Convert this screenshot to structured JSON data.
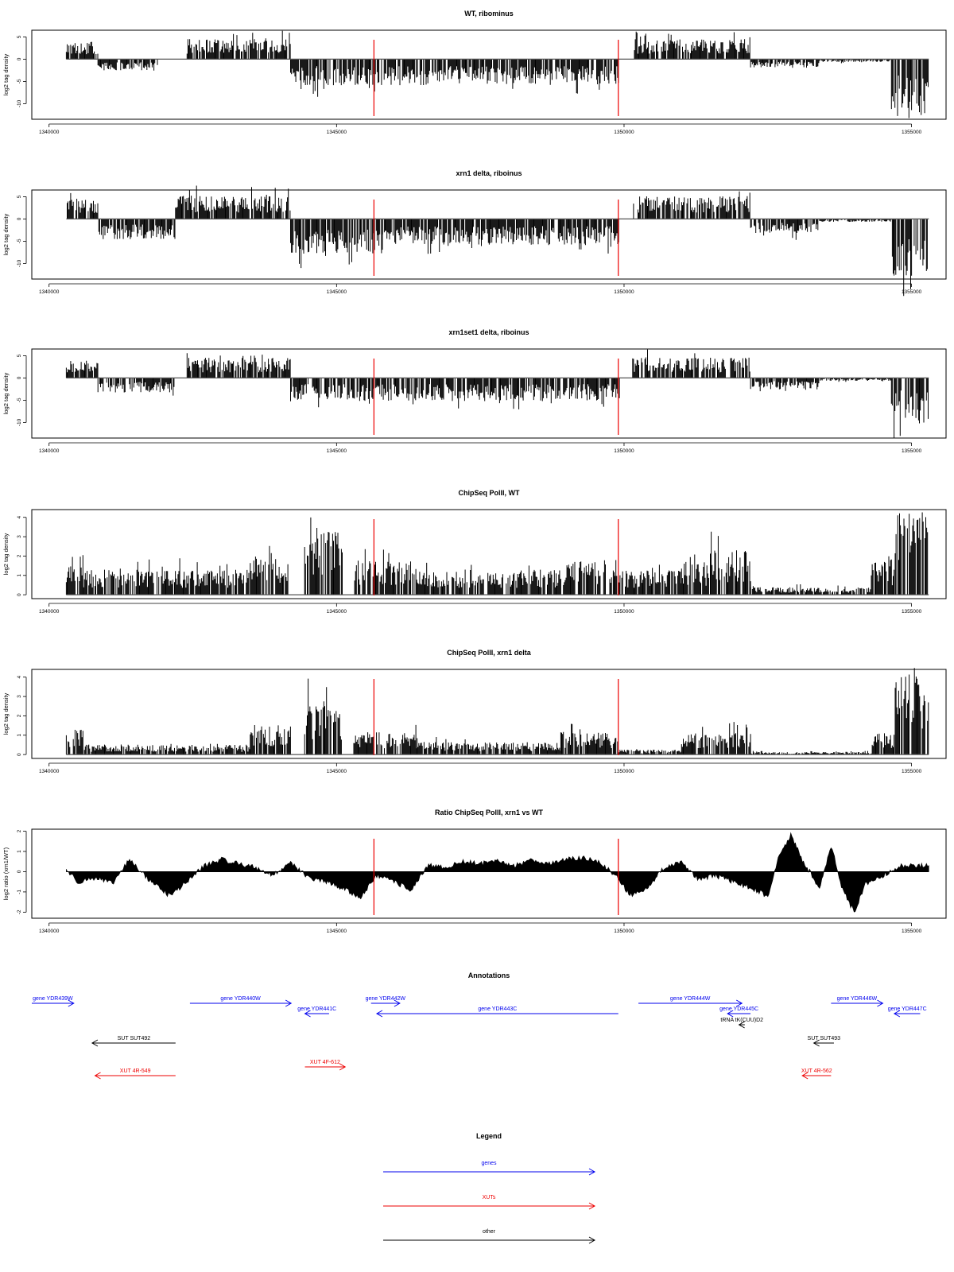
{
  "colors": {
    "signal": "#000000",
    "marker": "#ee0000",
    "genes": "#0000ee",
    "xuts": "#ee0000",
    "other": "#000000",
    "axis": "#000000",
    "zero_line": "#555555"
  },
  "chart_data": [
    {
      "type": "bar",
      "title": "WT, ribominus",
      "ylabel": "log2 tag density",
      "xlim": [
        1339700,
        1355600
      ],
      "ylim": [
        -13.5,
        6.5
      ],
      "x_ticks": [
        1340000,
        1345000,
        1350000,
        1355000
      ],
      "y_ticks": [
        5,
        0,
        -5,
        -10
      ],
      "markers_x": [
        1345650,
        1349900
      ],
      "segments": [
        {
          "x": [
            1340300,
            1340850
          ],
          "y": 3
        },
        {
          "x": [
            1340850,
            1341900
          ],
          "y": -2
        },
        {
          "x": [
            1342400,
            1344200
          ],
          "y": 3.5
        },
        {
          "x": [
            1344200,
            1349920
          ],
          "y": -4.5
        },
        {
          "x": [
            1350150,
            1352200
          ],
          "y": 3.5
        },
        {
          "x": [
            1352200,
            1353400
          ],
          "y": -1.5
        },
        {
          "x": [
            1353400,
            1354650
          ],
          "y": -0.5
        },
        {
          "x": [
            1354650,
            1355300
          ],
          "y": -10
        }
      ]
    },
    {
      "type": "bar",
      "title": "xrn1 delta, riboinus",
      "ylabel": "log2 tag density",
      "xlim": [
        1339700,
        1355600
      ],
      "ylim": [
        -13.5,
        6.5
      ],
      "x_ticks": [
        1340000,
        1345000,
        1350000,
        1355000
      ],
      "y_ticks": [
        5,
        0,
        -5,
        -10
      ],
      "markers_x": [
        1345650,
        1349900
      ],
      "segments": [
        {
          "x": [
            1340300,
            1340850
          ],
          "y": 3.5
        },
        {
          "x": [
            1340850,
            1342200
          ],
          "y": -3.5
        },
        {
          "x": [
            1342200,
            1344200
          ],
          "y": 4
        },
        {
          "x": [
            1344200,
            1345800
          ],
          "y": -6
        },
        {
          "x": [
            1345800,
            1349920
          ],
          "y": -4.5
        },
        {
          "x": [
            1350150,
            1352200
          ],
          "y": 4
        },
        {
          "x": [
            1352200,
            1353400
          ],
          "y": -2.5
        },
        {
          "x": [
            1353400,
            1354650
          ],
          "y": -0.5
        },
        {
          "x": [
            1354650,
            1355300
          ],
          "y": -10
        }
      ]
    },
    {
      "type": "bar",
      "title": "xrn1set1 delta, riboinus",
      "ylabel": "log2 tag density",
      "xlim": [
        1339700,
        1355600
      ],
      "ylim": [
        -13.5,
        6.5
      ],
      "x_ticks": [
        1340000,
        1345000,
        1350000,
        1355000
      ],
      "y_ticks": [
        5,
        0,
        -5,
        -10
      ],
      "markers_x": [
        1345650,
        1349900
      ],
      "segments": [
        {
          "x": [
            1340300,
            1340850
          ],
          "y": 3
        },
        {
          "x": [
            1340850,
            1342200
          ],
          "y": -2.5
        },
        {
          "x": [
            1342400,
            1344200
          ],
          "y": 3.5
        },
        {
          "x": [
            1344200,
            1349920
          ],
          "y": -4
        },
        {
          "x": [
            1350150,
            1352200
          ],
          "y": 3.5
        },
        {
          "x": [
            1352200,
            1353400
          ],
          "y": -2
        },
        {
          "x": [
            1353400,
            1354650
          ],
          "y": -0.5
        },
        {
          "x": [
            1354650,
            1355300
          ],
          "y": -8
        }
      ]
    },
    {
      "type": "bar",
      "title": "ChipSeq PolII, WT",
      "ylabel": "log2 tag density",
      "xlim": [
        1339700,
        1355600
      ],
      "ylim": [
        -0.2,
        4.4
      ],
      "x_ticks": [
        1340000,
        1345000,
        1350000,
        1355000
      ],
      "y_ticks": [
        4,
        3,
        2,
        1,
        0
      ],
      "markers_x": [
        1345650,
        1349900
      ],
      "segments": [
        {
          "x": [
            1340300,
            1340600
          ],
          "y": 1.6
        },
        {
          "x": [
            1340600,
            1343500
          ],
          "y": 1
        },
        {
          "x": [
            1343500,
            1344200
          ],
          "y": 1.6
        },
        {
          "x": [
            1344400,
            1345100
          ],
          "y": 2.8
        },
        {
          "x": [
            1345300,
            1346400
          ],
          "y": 1.4
        },
        {
          "x": [
            1346400,
            1348900
          ],
          "y": 1
        },
        {
          "x": [
            1348900,
            1349900
          ],
          "y": 1.4
        },
        {
          "x": [
            1349900,
            1351000
          ],
          "y": 1
        },
        {
          "x": [
            1351000,
            1351500
          ],
          "y": 1.3
        },
        {
          "x": [
            1351500,
            1352200
          ],
          "y": 1.8
        },
        {
          "x": [
            1352200,
            1354300
          ],
          "y": 0.3
        },
        {
          "x": [
            1354300,
            1354700
          ],
          "y": 1.4
        },
        {
          "x": [
            1354700,
            1355300
          ],
          "y": 3.4
        }
      ]
    },
    {
      "type": "bar",
      "title": "ChipSeq PolII, xrn1 delta",
      "ylabel": "log2 tag density",
      "xlim": [
        1339700,
        1355600
      ],
      "ylim": [
        -0.2,
        4.4
      ],
      "x_ticks": [
        1340000,
        1345000,
        1350000,
        1355000
      ],
      "y_ticks": [
        4,
        3,
        2,
        1,
        0
      ],
      "markers_x": [
        1345650,
        1349900
      ],
      "segments": [
        {
          "x": [
            1340300,
            1340600
          ],
          "y": 1
        },
        {
          "x": [
            1340600,
            1343500
          ],
          "y": 0.4
        },
        {
          "x": [
            1343500,
            1344200
          ],
          "y": 1.2
        },
        {
          "x": [
            1344400,
            1345100
          ],
          "y": 2.2
        },
        {
          "x": [
            1345300,
            1346400
          ],
          "y": 0.9
        },
        {
          "x": [
            1346400,
            1348900
          ],
          "y": 0.5
        },
        {
          "x": [
            1348900,
            1349900
          ],
          "y": 0.9
        },
        {
          "x": [
            1349900,
            1351000
          ],
          "y": 0.2
        },
        {
          "x": [
            1351000,
            1351500
          ],
          "y": 0.9
        },
        {
          "x": [
            1351500,
            1352200
          ],
          "y": 0.9
        },
        {
          "x": [
            1352200,
            1354300
          ],
          "y": 0.1
        },
        {
          "x": [
            1354300,
            1354700
          ],
          "y": 0.9
        },
        {
          "x": [
            1354700,
            1355300
          ],
          "y": 3.5
        }
      ]
    },
    {
      "type": "area",
      "title": "Ratio ChipSeq PolII, xrn1 vs WT",
      "ylabel": "log2 ratio (xrn1/WT)",
      "xlim": [
        1339700,
        1355600
      ],
      "ylim": [
        -2.3,
        2.1
      ],
      "x_ticks": [
        1340000,
        1345000,
        1350000,
        1355000
      ],
      "y_ticks": [
        2,
        1,
        0,
        -1,
        -2
      ],
      "markers_x": [
        1345650,
        1349900
      ],
      "points": [
        [
          1340300,
          0.1
        ],
        [
          1340500,
          -0.5
        ],
        [
          1340800,
          -0.3
        ],
        [
          1341100,
          -0.6
        ],
        [
          1341400,
          0.6
        ],
        [
          1341700,
          -0.3
        ],
        [
          1342100,
          -1.2
        ],
        [
          1342400,
          -0.5
        ],
        [
          1342700,
          0.3
        ],
        [
          1343000,
          0.6
        ],
        [
          1343300,
          0.4
        ],
        [
          1343600,
          0.2
        ],
        [
          1343900,
          -0.2
        ],
        [
          1344200,
          0.5
        ],
        [
          1344500,
          -0.3
        ],
        [
          1344800,
          -0.5
        ],
        [
          1345100,
          -0.8
        ],
        [
          1345400,
          -1.3
        ],
        [
          1345700,
          -0.2
        ],
        [
          1346000,
          -0.5
        ],
        [
          1346300,
          -0.9
        ],
        [
          1346600,
          0.3
        ],
        [
          1346900,
          0.2
        ],
        [
          1347200,
          0.5
        ],
        [
          1347500,
          0.4
        ],
        [
          1347800,
          0.5
        ],
        [
          1348100,
          0.3
        ],
        [
          1348400,
          0.6
        ],
        [
          1348700,
          0.4
        ],
        [
          1349000,
          0.6
        ],
        [
          1349300,
          0.7
        ],
        [
          1349600,
          0.4
        ],
        [
          1349900,
          -0.3
        ],
        [
          1350100,
          -1.2
        ],
        [
          1350400,
          -0.8
        ],
        [
          1350700,
          0.2
        ],
        [
          1351000,
          0.5
        ],
        [
          1351300,
          -0.4
        ],
        [
          1351600,
          -0.2
        ],
        [
          1351900,
          -0.5
        ],
        [
          1352200,
          -0.8
        ],
        [
          1352500,
          -1.2
        ],
        [
          1352700,
          0.8
        ],
        [
          1352900,
          1.8
        ],
        [
          1353100,
          0.6
        ],
        [
          1353400,
          -0.8
        ],
        [
          1353600,
          1.3
        ],
        [
          1353800,
          -0.9
        ],
        [
          1354000,
          -2.0
        ],
        [
          1354200,
          -0.6
        ],
        [
          1354500,
          -0.2
        ],
        [
          1354800,
          0.3
        ],
        [
          1355300,
          0.3
        ]
      ]
    }
  ],
  "annotations": {
    "title": "Annotations",
    "xlim": [
      1339700,
      1355600
    ],
    "features": [
      {
        "label": "gene YDR439W",
        "kind": "genes",
        "start": 1339700,
        "end": 1340430,
        "strand": "+",
        "row": 0
      },
      {
        "label": "gene YDR440W",
        "kind": "genes",
        "start": 1342450,
        "end": 1344210,
        "strand": "+",
        "row": 0
      },
      {
        "label": "gene YDR441C",
        "kind": "genes",
        "start": 1344450,
        "end": 1344870,
        "strand": "-",
        "row": 1
      },
      {
        "label": "gene YDR442W",
        "kind": "genes",
        "start": 1345600,
        "end": 1346100,
        "strand": "+",
        "row": 0
      },
      {
        "label": "gene YDR443C",
        "kind": "genes",
        "start": 1345700,
        "end": 1349900,
        "strand": "-",
        "row": 1
      },
      {
        "label": "gene YDR444W",
        "kind": "genes",
        "start": 1350250,
        "end": 1352050,
        "strand": "+",
        "row": 0
      },
      {
        "label": "gene YDR445C",
        "kind": "genes",
        "start": 1351800,
        "end": 1352200,
        "strand": "-",
        "row": 1
      },
      {
        "label": "gene YDR446W",
        "kind": "genes",
        "start": 1353600,
        "end": 1354500,
        "strand": "+",
        "row": 0
      },
      {
        "label": "gene YDR447C",
        "kind": "genes",
        "start": 1354700,
        "end": 1355150,
        "strand": "-",
        "row": 1
      },
      {
        "label": "tRNA tK(CUU)D2",
        "kind": "other",
        "start": 1352000,
        "end": 1352100,
        "strand": "-",
        "row": 2
      },
      {
        "label": "SUT SUT492",
        "kind": "other",
        "start": 1340750,
        "end": 1342200,
        "strand": "-",
        "row": 3
      },
      {
        "label": "SUT SUT493",
        "kind": "other",
        "start": 1353300,
        "end": 1353650,
        "strand": "-",
        "row": 3
      },
      {
        "label": "XUT 4R-549",
        "kind": "xuts",
        "start": 1340800,
        "end": 1342200,
        "strand": "-",
        "row": 5
      },
      {
        "label": "XUT 4F-612",
        "kind": "xuts",
        "start": 1344450,
        "end": 1345150,
        "strand": "+",
        "row": 4
      },
      {
        "label": "XUT 4R-562",
        "kind": "xuts",
        "start": 1353100,
        "end": 1353600,
        "strand": "-",
        "row": 5
      }
    ]
  },
  "legend": {
    "title": "Legend",
    "items": [
      {
        "label": "genes",
        "kind": "genes"
      },
      {
        "label": "XUTs",
        "kind": "xuts"
      },
      {
        "label": "other",
        "kind": "other"
      }
    ]
  }
}
